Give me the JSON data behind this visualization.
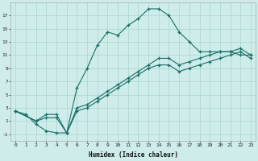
{
  "xlabel": "Humidex (Indice chaleur)",
  "background_color": "#ceecea",
  "grid_color": "#aad4d0",
  "line_color": "#1a6e65",
  "xlim": [
    -0.5,
    23.5
  ],
  "ylim": [
    -2,
    19
  ],
  "xticks": [
    0,
    1,
    2,
    3,
    4,
    5,
    6,
    7,
    8,
    9,
    10,
    11,
    12,
    13,
    14,
    15,
    16,
    17,
    18,
    19,
    20,
    21,
    22,
    23
  ],
  "yticks": [
    -1,
    1,
    3,
    5,
    7,
    9,
    11,
    13,
    15,
    17
  ],
  "line1_x": [
    0,
    1,
    2,
    3,
    4,
    5,
    6,
    7,
    8,
    9,
    10,
    11,
    12,
    13,
    14,
    15,
    16,
    17,
    18,
    19,
    20,
    21,
    22,
    23
  ],
  "line1_y": [
    2.5,
    2.0,
    0.5,
    -0.5,
    -0.8,
    -0.8,
    6.0,
    9.0,
    12.5,
    14.5,
    14.0,
    15.5,
    16.5,
    18.0,
    18.0,
    17.0,
    14.5,
    13.0,
    11.5,
    11.5,
    11.5,
    11.5,
    11.0,
    11.0
  ],
  "line2_x": [
    0,
    2,
    3,
    4,
    5,
    6,
    7,
    8,
    9,
    10,
    11,
    12,
    13,
    14,
    15,
    16,
    17,
    18,
    19,
    20,
    21,
    22,
    23
  ],
  "line2_y": [
    2.5,
    1.0,
    2.0,
    2.0,
    -0.8,
    3.0,
    3.5,
    4.5,
    5.5,
    6.5,
    7.5,
    8.5,
    9.5,
    10.5,
    10.5,
    9.5,
    10.0,
    10.5,
    11.0,
    11.5,
    11.5,
    12.0,
    11.0
  ],
  "line3_x": [
    0,
    2,
    3,
    4,
    5,
    6,
    7,
    8,
    9,
    10,
    11,
    12,
    13,
    14,
    15,
    16,
    17,
    18,
    19,
    20,
    21,
    22,
    23
  ],
  "line3_y": [
    2.5,
    1.0,
    1.5,
    1.5,
    -0.8,
    2.5,
    3.0,
    4.0,
    5.0,
    6.0,
    7.0,
    8.0,
    9.0,
    9.5,
    9.5,
    8.5,
    9.0,
    9.5,
    10.0,
    10.5,
    11.0,
    11.5,
    10.5
  ]
}
